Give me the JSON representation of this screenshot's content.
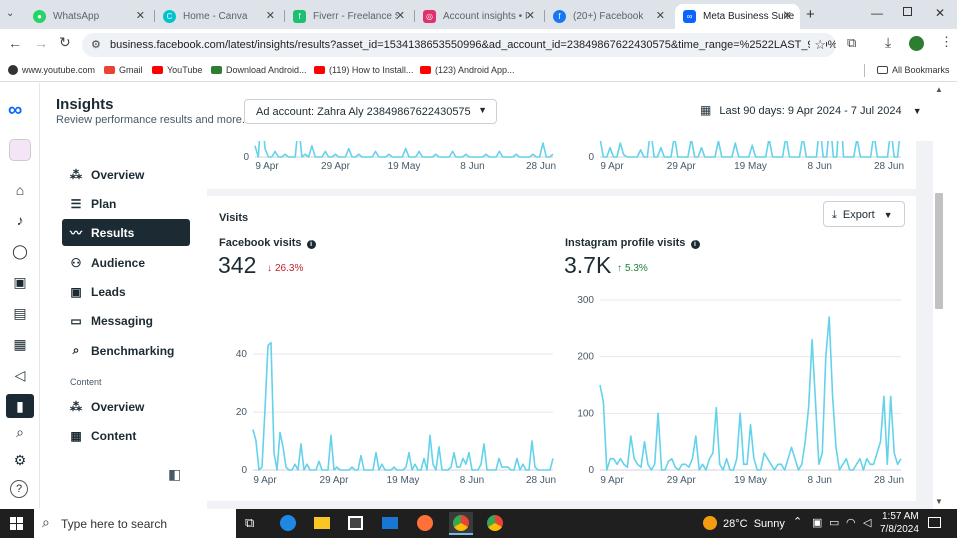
{
  "browser": {
    "tabs": [
      {
        "label": "WhatsApp",
        "icon": "whatsapp-icon",
        "color": "#25d366"
      },
      {
        "label": "Home - Canva",
        "icon": "canva-icon",
        "color": "#00c4cc"
      },
      {
        "label": "Fiverr - Freelance Ser",
        "icon": "fiverr-icon",
        "color": "#1dbf73"
      },
      {
        "label": "Account insights • In",
        "icon": "instagram-icon",
        "color": "#e1306c"
      },
      {
        "label": "(20+) Facebook",
        "icon": "facebook-icon",
        "color": "#1877f2"
      },
      {
        "label": "Meta Business Suite",
        "icon": "meta-icon",
        "color": "#0866ff"
      }
    ],
    "url": "business.facebook.com/latest/insights/results?asset_id=1534138653550996&ad_account_id=23849867622430575&time_range=%2522LAST_90D%2522",
    "bookmarks": [
      {
        "label": "www.youtube.com",
        "color": "#555"
      },
      {
        "label": "Gmail",
        "color": "#ea4335"
      },
      {
        "label": "YouTube",
        "color": "#ff0000"
      },
      {
        "label": "Download Android...",
        "color": "#2e7d32"
      },
      {
        "label": "(119) How to Install...",
        "color": "#ff0000"
      },
      {
        "label": "(123) Android App...",
        "color": "#ff0000"
      }
    ],
    "all_bookmarks": "All Bookmarks"
  },
  "header": {
    "title": "Insights",
    "subtitle": "Review performance results and more.",
    "ad_account": "Ad account: Zahra Aly 23849867622430575",
    "date_range": "Last 90 days: 9 Apr 2024 - 7 Jul 2024"
  },
  "nav": {
    "items": [
      {
        "label": "Overview",
        "icon": "overview-icon"
      },
      {
        "label": "Plan",
        "icon": "plan-icon"
      },
      {
        "label": "Results",
        "icon": "results-icon"
      },
      {
        "label": "Audience",
        "icon": "audience-icon"
      },
      {
        "label": "Leads",
        "icon": "leads-icon"
      },
      {
        "label": "Messaging",
        "icon": "messaging-icon"
      },
      {
        "label": "Benchmarking",
        "icon": "benchmarking-icon"
      }
    ],
    "content_section": "Content",
    "content_items": [
      {
        "label": "Overview",
        "icon": "content-overview-icon"
      },
      {
        "label": "Content",
        "icon": "content-table-icon"
      }
    ]
  },
  "visits": {
    "title": "Visits",
    "export": "Export",
    "facebook": {
      "label": "Facebook visits",
      "value": "342",
      "change": "26.3%",
      "direction": "down"
    },
    "instagram": {
      "label": "Instagram profile visits",
      "value": "3.7K",
      "change": "5.3%",
      "direction": "up"
    }
  },
  "taskbar": {
    "search": "Type here to search",
    "weather": "28°C  Sunny",
    "time": "1:57 AM",
    "date": "7/8/2024"
  },
  "chart_data": [
    {
      "type": "line",
      "title": "",
      "x_ticks": [
        "9 Apr",
        "29 Apr",
        "19 May",
        "8 Jun",
        "28 Jun"
      ],
      "y_ticks": [
        0
      ],
      "values": [
        4,
        0,
        18,
        3,
        0,
        0,
        2,
        0,
        0,
        1,
        0,
        0,
        0,
        12,
        0,
        1,
        0,
        4,
        0,
        0,
        0,
        2,
        0,
        0,
        1,
        0,
        0,
        0,
        3,
        0,
        0,
        1,
        0,
        0,
        0,
        0,
        2,
        0,
        0,
        0,
        1,
        0,
        0,
        0,
        0,
        3,
        0,
        0,
        0,
        2,
        0,
        0,
        0,
        0,
        1,
        0,
        0,
        0,
        0,
        2,
        0,
        0,
        0,
        1,
        0,
        0,
        0,
        0,
        0,
        1,
        0,
        0,
        0,
        2,
        0,
        0,
        0,
        0,
        1,
        0,
        0,
        0,
        0,
        1,
        0,
        0,
        5,
        0,
        0,
        1
      ]
    },
    {
      "type": "line",
      "title": "",
      "x_ticks": [
        "9 Apr",
        "29 Apr",
        "19 May",
        "8 Jun",
        "28 Jun"
      ],
      "y_ticks": [
        0
      ],
      "values": [
        40,
        0,
        0,
        20,
        0,
        0,
        30,
        5,
        0,
        0,
        0,
        0,
        15,
        0,
        0,
        60,
        0,
        0,
        20,
        0,
        0,
        0,
        45,
        0,
        0,
        0,
        0,
        40,
        0,
        0,
        20,
        0,
        0,
        0,
        0,
        35,
        0,
        0,
        0,
        0,
        30,
        0,
        0,
        0,
        0,
        25,
        0,
        0,
        0,
        0,
        40,
        0,
        0,
        0,
        0,
        45,
        0,
        0,
        0,
        0,
        45,
        0,
        0,
        0,
        0,
        70,
        0,
        0,
        80,
        0,
        0,
        120,
        0,
        0,
        0,
        0,
        40,
        0,
        0,
        0,
        0,
        50,
        0,
        0,
        0,
        0,
        60,
        0,
        0,
        70
      ]
    },
    {
      "type": "line",
      "title": "Facebook visits",
      "x_ticks": [
        "9 Apr",
        "29 Apr",
        "19 May",
        "8 Jun",
        "28 Jun"
      ],
      "y_ticks": [
        0,
        20,
        40
      ],
      "ylim": [
        0,
        48
      ],
      "values": [
        14,
        10,
        0,
        1,
        21,
        43,
        44,
        6,
        0,
        13,
        8,
        1,
        0,
        0,
        2,
        0,
        9,
        0,
        2,
        0,
        0,
        0,
        3,
        0,
        0,
        0,
        12,
        0,
        1,
        0,
        0,
        0,
        0,
        1,
        0,
        0,
        5,
        0,
        0,
        0,
        0,
        6,
        0,
        2,
        0,
        0,
        0,
        1,
        0,
        0,
        0,
        1,
        6,
        0,
        2,
        0,
        0,
        4,
        0,
        12,
        2,
        0,
        8,
        0,
        0,
        0,
        1,
        6,
        1,
        1,
        4,
        2,
        6,
        0,
        0,
        0,
        2,
        9,
        0,
        0,
        0,
        0,
        4,
        1,
        1,
        1,
        0,
        0,
        4,
        0,
        2,
        0,
        0,
        10,
        1,
        0,
        0,
        0,
        0,
        0,
        4
      ]
    },
    {
      "type": "line",
      "title": "Instagram profile visits",
      "x_ticks": [
        "9 Apr",
        "29 Apr",
        "19 May",
        "8 Jun",
        "28 Jun"
      ],
      "y_ticks": [
        0,
        100,
        200,
        300
      ],
      "ylim": [
        0,
        300
      ],
      "values": [
        150,
        120,
        0,
        20,
        20,
        10,
        20,
        10,
        5,
        60,
        20,
        10,
        5,
        50,
        10,
        0,
        10,
        100,
        0,
        0,
        15,
        20,
        5,
        0,
        10,
        10,
        5,
        20,
        60,
        0,
        10,
        0,
        20,
        30,
        110,
        10,
        0,
        20,
        0,
        0,
        20,
        100,
        10,
        10,
        80,
        20,
        0,
        0,
        30,
        20,
        10,
        0,
        10,
        10,
        0,
        20,
        40,
        20,
        0,
        10,
        50,
        110,
        230,
        120,
        10,
        30,
        200,
        270,
        130,
        40,
        0,
        10,
        20,
        0,
        0,
        10,
        20,
        0,
        20,
        10,
        10,
        30,
        50,
        130,
        10,
        130,
        30,
        10,
        20
      ]
    }
  ]
}
